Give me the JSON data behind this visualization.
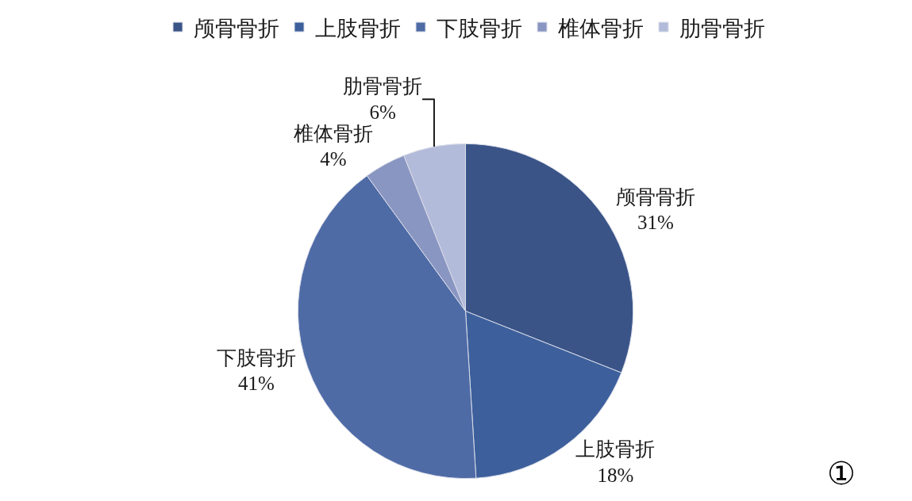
{
  "chart_data": {
    "type": "pie",
    "categories": [
      "颅骨骨折",
      "上肢骨折",
      "下肢骨折",
      "椎体骨折",
      "肋骨骨折"
    ],
    "values": [
      31,
      18,
      41,
      4,
      6
    ],
    "value_labels": [
      "31%",
      "18%",
      "41%",
      "4%",
      "6%"
    ],
    "colors": [
      "#3a5488",
      "#3d609c",
      "#4e6ba6",
      "#8a96c2",
      "#b3bbda"
    ],
    "legend": "top",
    "annotations": [
      "①"
    ]
  }
}
